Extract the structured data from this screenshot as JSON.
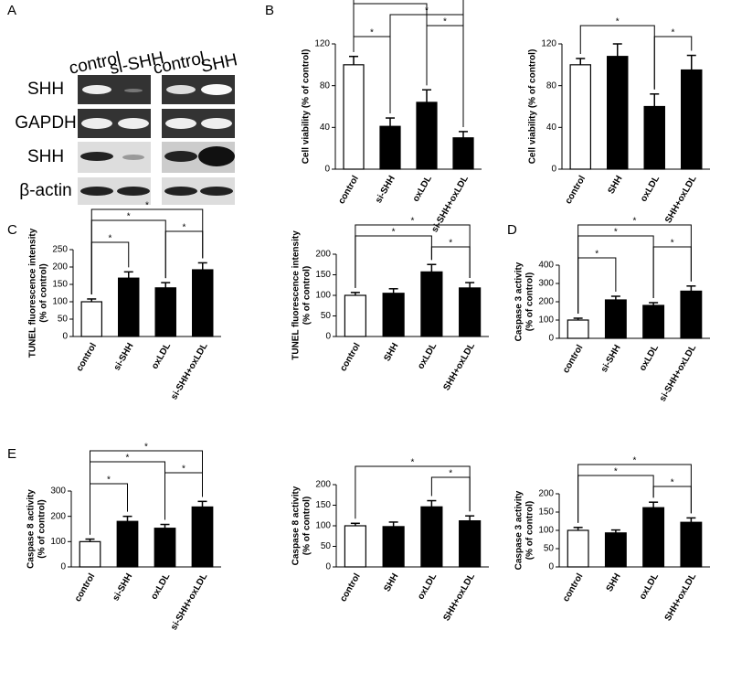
{
  "blot": {
    "panel": "A",
    "lanes": [
      "control",
      "si-SHH",
      "control",
      "SHH"
    ],
    "rows": [
      "SHH",
      "GAPDH",
      "SHH",
      "β-actin"
    ]
  },
  "chart_data": [
    {
      "type": "bar",
      "panel": "B",
      "ylabel": [
        "Cell viability (% of control)"
      ],
      "categories": [
        "control",
        "si-SHH",
        "oxLDL",
        "si-SHH+oxLDL"
      ],
      "values": [
        100,
        41,
        64,
        30
      ],
      "errors": [
        8,
        8,
        12,
        6
      ],
      "colors": [
        "#ffffff",
        "#000000",
        "#000000",
        "#000000"
      ],
      "ylim": [
        0,
        120
      ],
      "yticks": [
        0,
        40,
        80,
        120
      ],
      "significance": [
        {
          "from": 0,
          "to": 1,
          "label": "*"
        },
        {
          "from": 2,
          "to": 3,
          "label": "*"
        },
        {
          "from": 1,
          "to": 3,
          "label": "*"
        },
        {
          "from": 0,
          "to": 2,
          "label": "*"
        },
        {
          "from": 0,
          "to": 3,
          "label": "*"
        }
      ]
    },
    {
      "type": "bar",
      "ylabel": [
        "Cell viability (% of control)"
      ],
      "categories": [
        "control",
        "SHH",
        "oxLDL",
        "SHH+oxLDL"
      ],
      "values": [
        100,
        108,
        60,
        95
      ],
      "errors": [
        6,
        12,
        12,
        14
      ],
      "colors": [
        "#ffffff",
        "#000000",
        "#000000",
        "#000000"
      ],
      "ylim": [
        0,
        120
      ],
      "yticks": [
        0,
        40,
        80,
        120
      ],
      "significance": [
        {
          "from": 2,
          "to": 3,
          "label": "*"
        },
        {
          "from": 0,
          "to": 2,
          "label": "*"
        }
      ]
    },
    {
      "type": "bar",
      "panel": "C",
      "ylabel": [
        "TUNEL fluorescence intensity",
        "(% of control)"
      ],
      "categories": [
        "control",
        "si-SHH",
        "oxLDL",
        "si-SHH+oxLDL"
      ],
      "values": [
        100,
        168,
        140,
        192
      ],
      "errors": [
        8,
        18,
        15,
        20
      ],
      "colors": [
        "#ffffff",
        "#000000",
        "#000000",
        "#000000"
      ],
      "ylim": [
        0,
        250
      ],
      "yticks": [
        0,
        50,
        100,
        150,
        200,
        250
      ],
      "significance": [
        {
          "from": 0,
          "to": 1,
          "label": "*"
        },
        {
          "from": 2,
          "to": 3,
          "label": "*"
        },
        {
          "from": 0,
          "to": 2,
          "label": "*"
        },
        {
          "from": 0,
          "to": 3,
          "label": "*"
        }
      ]
    },
    {
      "type": "bar",
      "ylabel": [
        "TUNEL fluorescence intensity",
        "(% of control)"
      ],
      "categories": [
        "control",
        "SHH",
        "oxLDL",
        "SHH+oxLDL"
      ],
      "values": [
        100,
        105,
        157,
        118
      ],
      "errors": [
        7,
        11,
        18,
        13
      ],
      "colors": [
        "#ffffff",
        "#000000",
        "#000000",
        "#000000"
      ],
      "ylim": [
        0,
        200
      ],
      "yticks": [
        0,
        50,
        100,
        150,
        200
      ],
      "significance": [
        {
          "from": 2,
          "to": 3,
          "label": "*"
        },
        {
          "from": 0,
          "to": 2,
          "label": "*"
        },
        {
          "from": 0,
          "to": 3,
          "label": "*"
        }
      ]
    },
    {
      "type": "bar",
      "panel": "D",
      "ylabel": [
        "Caspase 3 activity",
        "(% of control)"
      ],
      "categories": [
        "control",
        "si-SHH",
        "oxLDL",
        "si-SHH+oxLDL"
      ],
      "values": [
        100,
        210,
        180,
        258
      ],
      "errors": [
        10,
        20,
        15,
        28
      ],
      "colors": [
        "#ffffff",
        "#000000",
        "#000000",
        "#000000"
      ],
      "ylim": [
        0,
        400
      ],
      "yticks": [
        0,
        100,
        200,
        300,
        400
      ],
      "significance": [
        {
          "from": 0,
          "to": 1,
          "label": "*"
        },
        {
          "from": 2,
          "to": 3,
          "label": "*"
        },
        {
          "from": 0,
          "to": 2,
          "label": "*"
        },
        {
          "from": 0,
          "to": 3,
          "label": "*"
        }
      ]
    },
    {
      "type": "bar",
      "panel": "E",
      "ylabel": [
        "Caspase 8 activity",
        "(% of control)"
      ],
      "categories": [
        "control",
        "si-SHH",
        "oxLDL",
        "si-SHH+oxLDL"
      ],
      "values": [
        100,
        180,
        153,
        237
      ],
      "errors": [
        10,
        20,
        15,
        22
      ],
      "colors": [
        "#ffffff",
        "#000000",
        "#000000",
        "#000000"
      ],
      "ylim": [
        0,
        300
      ],
      "yticks": [
        0,
        100,
        200,
        300
      ],
      "significance": [
        {
          "from": 0,
          "to": 1,
          "label": "*"
        },
        {
          "from": 2,
          "to": 3,
          "label": "*"
        },
        {
          "from": 0,
          "to": 2,
          "label": "*"
        },
        {
          "from": 0,
          "to": 3,
          "label": "*"
        }
      ]
    },
    {
      "type": "bar",
      "ylabel": [
        "Caspase 8 activity",
        "(% of control)"
      ],
      "categories": [
        "control",
        "SHH",
        "oxLDL",
        "SHH+oxLDL"
      ],
      "values": [
        100,
        98,
        146,
        112
      ],
      "errors": [
        6,
        11,
        15,
        12
      ],
      "colors": [
        "#ffffff",
        "#000000",
        "#000000",
        "#000000"
      ],
      "ylim": [
        0,
        200
      ],
      "yticks": [
        0,
        50,
        100,
        150,
        200
      ],
      "significance": [
        {
          "from": 2,
          "to": 3,
          "label": "*"
        },
        {
          "from": 0,
          "to": 3,
          "label": "*"
        }
      ]
    },
    {
      "type": "bar",
      "ylabel": [
        "Caspase 3 activity",
        "(% of control)"
      ],
      "categories": [
        "control",
        "SHH",
        "oxLDL",
        "SHH+oxLDL"
      ],
      "values": [
        100,
        93,
        162,
        122
      ],
      "errors": [
        8,
        8,
        15,
        12
      ],
      "colors": [
        "#ffffff",
        "#000000",
        "#000000",
        "#000000"
      ],
      "ylim": [
        0,
        200
      ],
      "yticks": [
        0,
        50,
        100,
        150,
        200
      ],
      "significance": [
        {
          "from": 2,
          "to": 3,
          "label": "*"
        },
        {
          "from": 0,
          "to": 2,
          "label": "*"
        },
        {
          "from": 0,
          "to": 3,
          "label": "*"
        }
      ]
    }
  ]
}
